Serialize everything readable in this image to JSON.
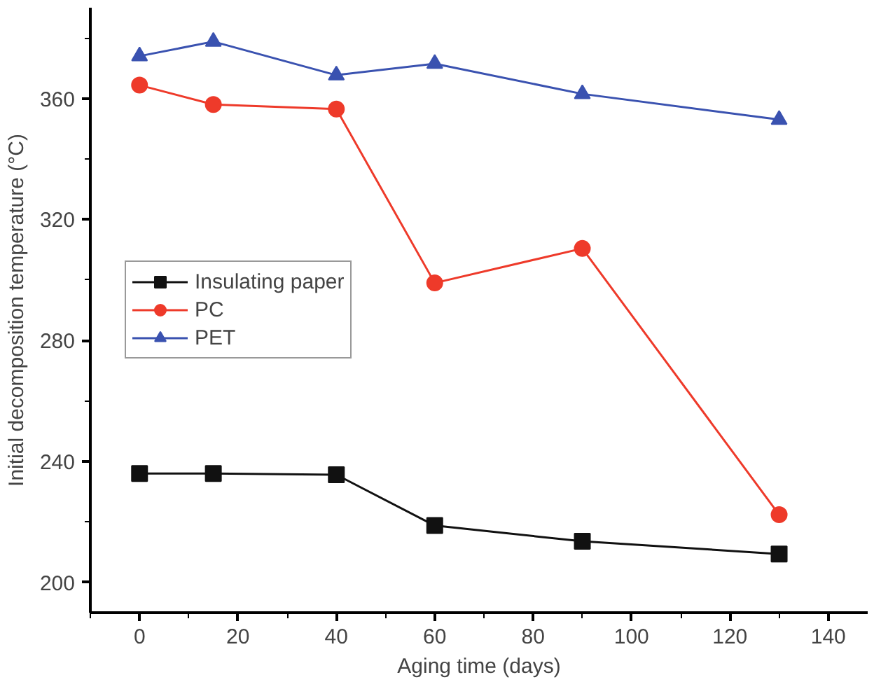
{
  "chart_data": {
    "type": "line",
    "xlabel": "Aging time (days)",
    "ylabel": "Initial decomposition temperature (°C)",
    "x": [
      0,
      15,
      40,
      60,
      90,
      130
    ],
    "series": [
      {
        "name": "Insulating paper",
        "color": "#111111",
        "marker": "square",
        "values": [
          236,
          236,
          235.6,
          218.8,
          213.6,
          209.4
        ]
      },
      {
        "name": "PC",
        "color": "#ee3a2a",
        "marker": "circle",
        "values": [
          364.4,
          358,
          356.5,
          299,
          310.4,
          222.4
        ]
      },
      {
        "name": "PET",
        "color": "#3a52b0",
        "marker": "triangle",
        "values": [
          374,
          378.8,
          367.7,
          371.5,
          361.5,
          353
        ]
      }
    ],
    "xlim": [
      -10,
      148
    ],
    "ylim": [
      190,
      390
    ],
    "xticks": [
      0,
      20,
      40,
      60,
      80,
      100,
      120,
      140
    ],
    "yticks": [
      200,
      240,
      280,
      320,
      360
    ],
    "grid": false,
    "legend": "left",
    "line_style": "solid"
  }
}
